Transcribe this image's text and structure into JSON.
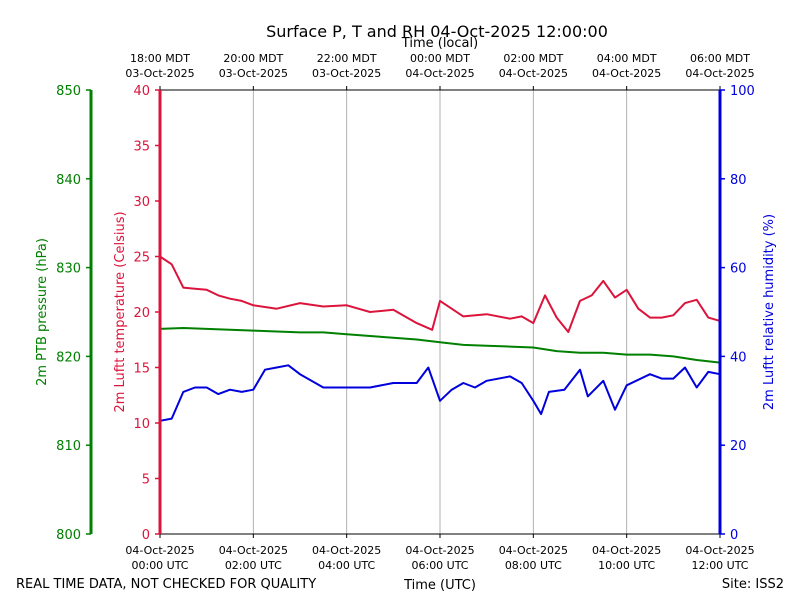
{
  "title": "Surface P, T and RH 04-Oct-2025 12:00:00",
  "footer": {
    "left": "REAL TIME DATA, NOT CHECKED FOR QUALITY",
    "right": "Site: ISS2"
  },
  "colors": {
    "pressure": "#008000",
    "temperature": "#dc143c",
    "humidity": "#0000dd",
    "grid": "#b0b0b0",
    "frame": "#000000"
  },
  "chart_data": {
    "type": "line",
    "title": "Surface P, T and RH 04-Oct-2025 12:00:00",
    "xlabel_bottom": "Time (UTC)",
    "xlabel_top": "Time (local)",
    "xlim": [
      "2025-10-04T00:00Z",
      "2025-10-04T12:00Z"
    ],
    "grid": true,
    "bottom_ticks": [
      {
        "time": "2025-10-04T00:00Z",
        "line1": "04-Oct-2025",
        "line2": "00:00 UTC"
      },
      {
        "time": "2025-10-04T02:00Z",
        "line1": "04-Oct-2025",
        "line2": "02:00 UTC"
      },
      {
        "time": "2025-10-04T04:00Z",
        "line1": "04-Oct-2025",
        "line2": "04:00 UTC"
      },
      {
        "time": "2025-10-04T06:00Z",
        "line1": "04-Oct-2025",
        "line2": "06:00 UTC"
      },
      {
        "time": "2025-10-04T08:00Z",
        "line1": "04-Oct-2025",
        "line2": "08:00 UTC"
      },
      {
        "time": "2025-10-04T10:00Z",
        "line1": "04-Oct-2025",
        "line2": "10:00 UTC"
      },
      {
        "time": "2025-10-04T12:00Z",
        "line1": "04-Oct-2025",
        "line2": "12:00 UTC"
      }
    ],
    "top_ticks": [
      {
        "time": "2025-10-04T00:00Z",
        "line1": "18:00 MDT",
        "line2": "03-Oct-2025"
      },
      {
        "time": "2025-10-04T02:00Z",
        "line1": "20:00 MDT",
        "line2": "03-Oct-2025"
      },
      {
        "time": "2025-10-04T04:00Z",
        "line1": "22:00 MDT",
        "line2": "03-Oct-2025"
      },
      {
        "time": "2025-10-04T06:00Z",
        "line1": "00:00 MDT",
        "line2": "04-Oct-2025"
      },
      {
        "time": "2025-10-04T08:00Z",
        "line1": "02:00 MDT",
        "line2": "04-Oct-2025"
      },
      {
        "time": "2025-10-04T10:00Z",
        "line1": "04:00 MDT",
        "line2": "04-Oct-2025"
      },
      {
        "time": "2025-10-04T12:00Z",
        "line1": "06:00 MDT",
        "line2": "04-Oct-2025"
      }
    ],
    "axes": {
      "pressure": {
        "label": "2m PTB pressure (hPa)",
        "ylim": [
          800,
          850
        ],
        "ticks": [
          800,
          810,
          820,
          830,
          840,
          850
        ]
      },
      "temperature": {
        "label": "2m Luftt temperature (Celsius)",
        "ylim": [
          0,
          40
        ],
        "ticks": [
          0,
          5,
          10,
          15,
          20,
          25,
          30,
          35,
          40
        ]
      },
      "humidity": {
        "label": "2m Luftt relative humidity (%)",
        "ylim": [
          0,
          100
        ],
        "ticks": [
          0,
          20,
          40,
          60,
          80,
          100
        ]
      }
    },
    "series": [
      {
        "name": "2m PTB pressure (hPa)",
        "axis": "pressure",
        "x": [
          "2025-10-04T00:00Z",
          "2025-10-04T00:30Z",
          "2025-10-04T01:00Z",
          "2025-10-04T01:30Z",
          "2025-10-04T02:00Z",
          "2025-10-04T02:30Z",
          "2025-10-04T03:00Z",
          "2025-10-04T03:30Z",
          "2025-10-04T04:00Z",
          "2025-10-04T04:30Z",
          "2025-10-04T05:00Z",
          "2025-10-04T05:30Z",
          "2025-10-04T06:00Z",
          "2025-10-04T06:30Z",
          "2025-10-04T07:00Z",
          "2025-10-04T07:30Z",
          "2025-10-04T08:00Z",
          "2025-10-04T08:30Z",
          "2025-10-04T09:00Z",
          "2025-10-04T09:30Z",
          "2025-10-04T10:00Z",
          "2025-10-04T10:30Z",
          "2025-10-04T11:00Z",
          "2025-10-04T11:30Z",
          "2025-10-04T12:00Z"
        ],
        "values": [
          823.1,
          823.2,
          823.1,
          823.0,
          822.9,
          822.8,
          822.7,
          822.7,
          822.5,
          822.3,
          822.1,
          821.9,
          821.6,
          821.3,
          821.2,
          821.1,
          821.0,
          820.6,
          820.4,
          820.4,
          820.2,
          820.2,
          820.0,
          819.6,
          819.3
        ]
      },
      {
        "name": "2m Luftt temperature (Celsius)",
        "axis": "temperature",
        "x": [
          "2025-10-04T00:00Z",
          "2025-10-04T00:15Z",
          "2025-10-04T00:30Z",
          "2025-10-04T00:45Z",
          "2025-10-04T01:00Z",
          "2025-10-04T01:15Z",
          "2025-10-04T01:30Z",
          "2025-10-04T01:45Z",
          "2025-10-04T02:00Z",
          "2025-10-04T02:30Z",
          "2025-10-04T03:00Z",
          "2025-10-04T03:30Z",
          "2025-10-04T04:00Z",
          "2025-10-04T04:30Z",
          "2025-10-04T05:00Z",
          "2025-10-04T05:30Z",
          "2025-10-04T05:50Z",
          "2025-10-04T06:00Z",
          "2025-10-04T06:15Z",
          "2025-10-04T06:30Z",
          "2025-10-04T07:00Z",
          "2025-10-04T07:30Z",
          "2025-10-04T07:45Z",
          "2025-10-04T08:00Z",
          "2025-10-04T08:15Z",
          "2025-10-04T08:30Z",
          "2025-10-04T08:45Z",
          "2025-10-04T09:00Z",
          "2025-10-04T09:15Z",
          "2025-10-04T09:30Z",
          "2025-10-04T09:45Z",
          "2025-10-04T10:00Z",
          "2025-10-04T10:15Z",
          "2025-10-04T10:30Z",
          "2025-10-04T10:45Z",
          "2025-10-04T11:00Z",
          "2025-10-04T11:15Z",
          "2025-10-04T11:30Z",
          "2025-10-04T11:45Z",
          "2025-10-04T12:00Z"
        ],
        "values": [
          25.0,
          24.3,
          22.2,
          22.1,
          22.0,
          21.5,
          21.2,
          21.0,
          20.6,
          20.3,
          20.8,
          20.5,
          20.6,
          20.0,
          20.2,
          19.0,
          18.4,
          21.0,
          20.3,
          19.6,
          19.8,
          19.4,
          19.6,
          19.0,
          21.5,
          19.5,
          18.2,
          21.0,
          21.5,
          22.8,
          21.3,
          22.0,
          20.3,
          19.5,
          19.5,
          19.7,
          20.8,
          21.1,
          19.5,
          19.2
        ]
      },
      {
        "name": "2m Luftt relative humidity (%)",
        "axis": "humidity",
        "x": [
          "2025-10-04T00:00Z",
          "2025-10-04T00:15Z",
          "2025-10-04T00:30Z",
          "2025-10-04T00:45Z",
          "2025-10-04T01:00Z",
          "2025-10-04T01:15Z",
          "2025-10-04T01:30Z",
          "2025-10-04T01:45Z",
          "2025-10-04T02:00Z",
          "2025-10-04T02:15Z",
          "2025-10-04T02:30Z",
          "2025-10-04T02:45Z",
          "2025-10-04T03:00Z",
          "2025-10-04T03:30Z",
          "2025-10-04T04:00Z",
          "2025-10-04T04:30Z",
          "2025-10-04T05:00Z",
          "2025-10-04T05:30Z",
          "2025-10-04T05:45Z",
          "2025-10-04T06:00Z",
          "2025-10-04T06:15Z",
          "2025-10-04T06:30Z",
          "2025-10-04T06:45Z",
          "2025-10-04T07:00Z",
          "2025-10-04T07:30Z",
          "2025-10-04T07:45Z",
          "2025-10-04T08:00Z",
          "2025-10-04T08:10Z",
          "2025-10-04T08:20Z",
          "2025-10-04T08:40Z",
          "2025-10-04T09:00Z",
          "2025-10-04T09:10Z",
          "2025-10-04T09:30Z",
          "2025-10-04T09:45Z",
          "2025-10-04T10:00Z",
          "2025-10-04T10:30Z",
          "2025-10-04T10:45Z",
          "2025-10-04T11:00Z",
          "2025-10-04T11:15Z",
          "2025-10-04T11:30Z",
          "2025-10-04T11:45Z",
          "2025-10-04T12:00Z"
        ],
        "values": [
          25.5,
          26.0,
          32.0,
          33.0,
          33.0,
          31.5,
          32.5,
          32.0,
          32.5,
          37.0,
          37.5,
          38.0,
          36.0,
          33.0,
          33.0,
          33.0,
          34.0,
          34.0,
          37.5,
          30.0,
          32.5,
          34.0,
          33.0,
          34.5,
          35.5,
          34.0,
          30.0,
          27.0,
          32.0,
          32.5,
          37.0,
          31.0,
          34.5,
          28.0,
          33.5,
          36.0,
          35.0,
          35.0,
          37.5,
          33.0,
          36.5,
          36.0
        ]
      }
    ]
  }
}
